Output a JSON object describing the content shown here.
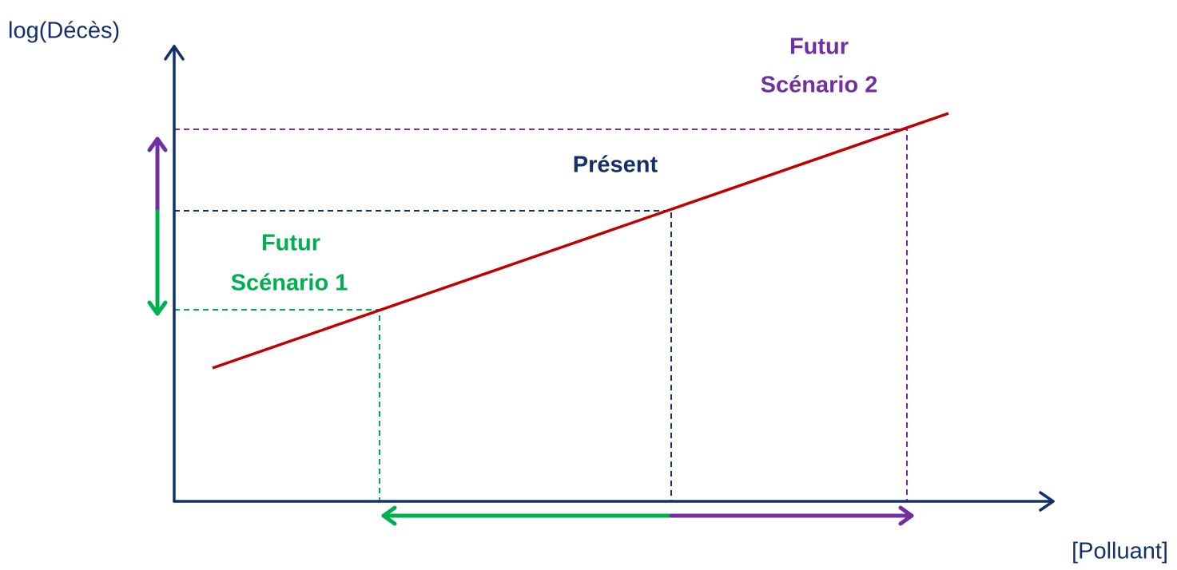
{
  "axes": {
    "y_label": "log(Décès)",
    "x_label": "[Polluant]"
  },
  "annotations": {
    "scenario_2": {
      "line1": "Futur",
      "line2": "Scénario 2"
    },
    "present": {
      "line1": "Présent"
    },
    "scenario_1": {
      "line1": "Futur",
      "line2": "Scénario 1"
    }
  }
}
